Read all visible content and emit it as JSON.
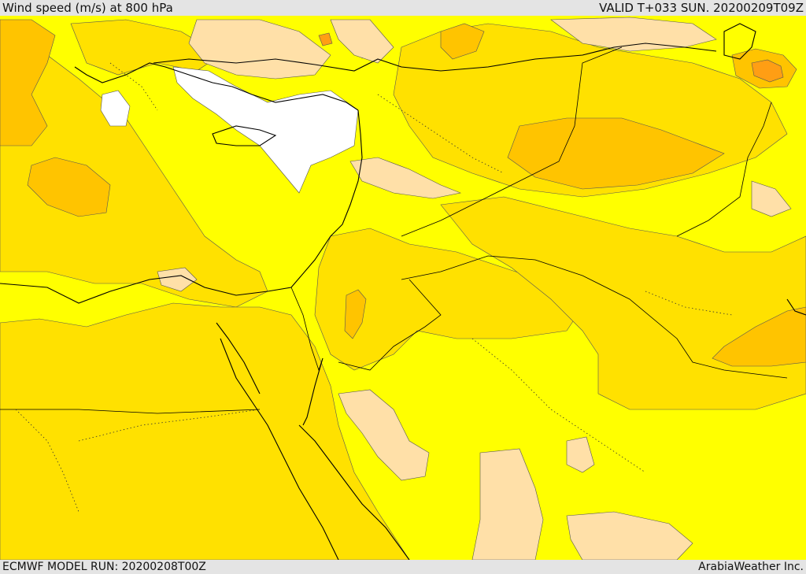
{
  "header": {
    "title": "Wind speed (m/s) at 800 hPa",
    "valid": "VALID T+033 SUN. 20200209T09Z"
  },
  "footer": {
    "model_run": "ECMWF MODEL RUN: 20200208T00Z",
    "credit": "ArabiaWeather Inc."
  },
  "map": {
    "field": "wind speed at 800 hPa",
    "colors": {
      "calm": "#ffffff",
      "low": "#ffe0a8",
      "moderate": "#ffff00",
      "fresh": "#ffe100",
      "strong": "#ffc400",
      "very-strong": "#ff9e14",
      "coast": "#000000",
      "border": "#000000",
      "contour": "#444444"
    }
  }
}
